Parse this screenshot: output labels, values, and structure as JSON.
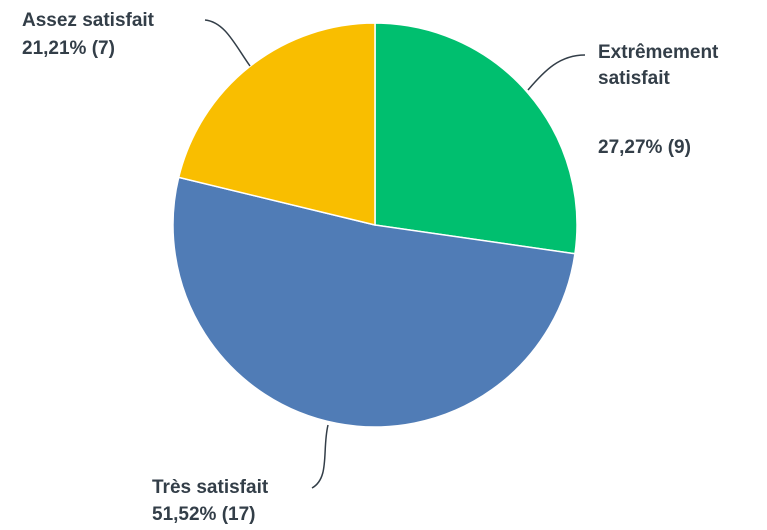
{
  "chart_data": {
    "type": "pie",
    "categories": [
      "Extrêmement satisfait",
      "Très satisfait",
      "Assez satisfait"
    ],
    "values": [
      27.27,
      51.52,
      21.21
    ],
    "value_labels": [
      "27,27% (9)",
      "51,52% (17)",
      "21,21% (7)"
    ],
    "colors": [
      "#00bf6f",
      "#507cb6",
      "#f9be00"
    ]
  }
}
